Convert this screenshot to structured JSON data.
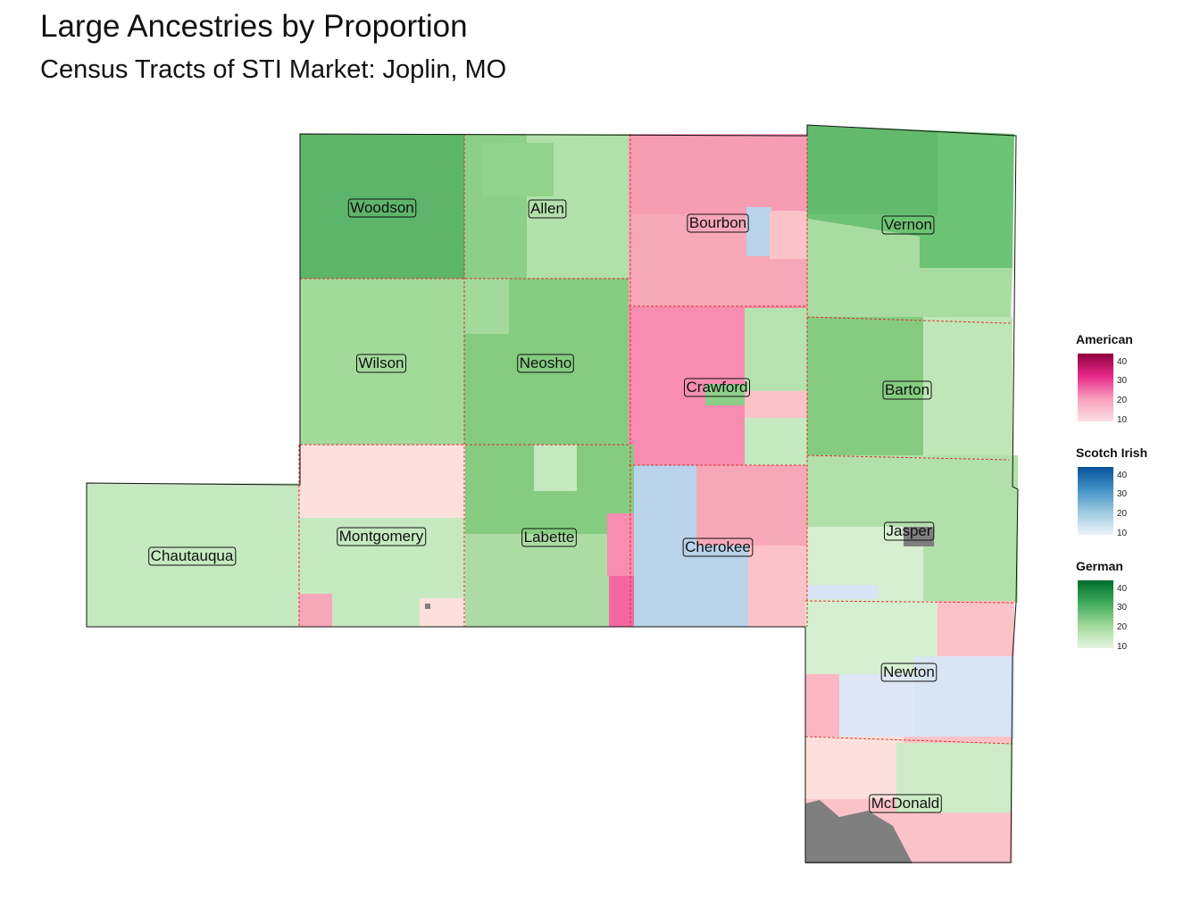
{
  "header": {
    "title": "Large Ancestries by Proportion",
    "subtitle": "Census Tracts of STI Market: Joplin, MO"
  },
  "colors": {
    "american_scale": [
      "#fde0e6",
      "#f99fbc",
      "#e7298a",
      "#91003f"
    ],
    "scotch_irish_scale": [
      "#eef4fc",
      "#9ecae1",
      "#4292c6",
      "#08519c"
    ],
    "german_scale": [
      "#e5f5e0",
      "#a1d99b",
      "#41ab5d",
      "#006d2c"
    ],
    "missing": "#7f7f7f",
    "county_border": "#e03030"
  },
  "counties": [
    {
      "name": "Woodson"
    },
    {
      "name": "Allen"
    },
    {
      "name": "Bourbon"
    },
    {
      "name": "Vernon"
    },
    {
      "name": "Wilson"
    },
    {
      "name": "Neosho"
    },
    {
      "name": "Crawford"
    },
    {
      "name": "Barton"
    },
    {
      "name": "Chautauqua"
    },
    {
      "name": "Montgomery"
    },
    {
      "name": "Labette"
    },
    {
      "name": "Cherokee"
    },
    {
      "name": "Jasper"
    },
    {
      "name": "Newton"
    },
    {
      "name": "McDonald"
    }
  ],
  "legends": [
    {
      "title": "American",
      "ticks": [
        "40",
        "30",
        "20",
        "10"
      ]
    },
    {
      "title": "Scotch Irish",
      "ticks": [
        "40",
        "30",
        "20",
        "10"
      ]
    },
    {
      "title": "German",
      "ticks": [
        "40",
        "30",
        "20",
        "10"
      ]
    }
  ]
}
